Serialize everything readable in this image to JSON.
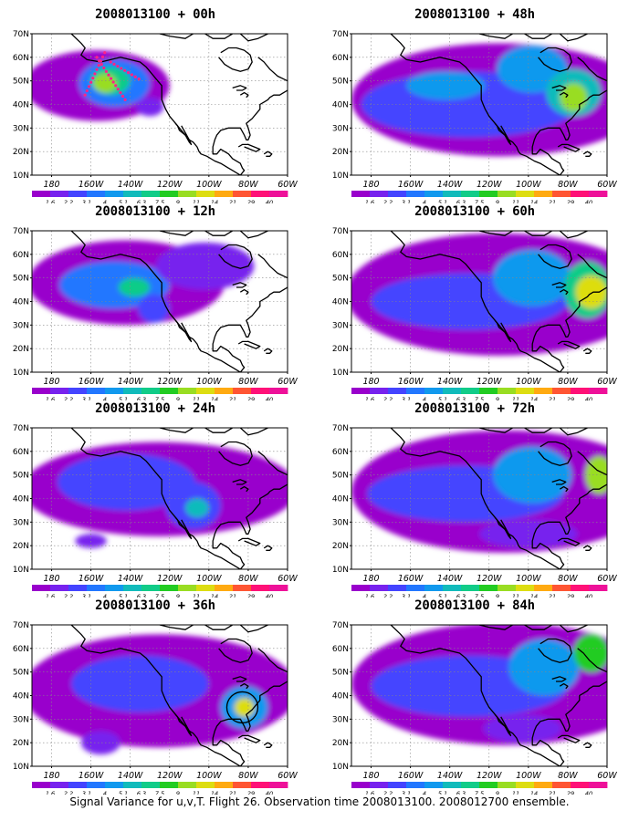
{
  "axes": {
    "lat_labels": [
      "70N",
      "60N",
      "50N",
      "40N",
      "30N",
      "20N",
      "10N"
    ],
    "lon_labels": [
      "180",
      "160W",
      "140W",
      "120W",
      "100W",
      "80W",
      "60W"
    ]
  },
  "colorbar": {
    "labels": [
      "1.6",
      "2.2",
      "3.1",
      "4",
      "5.1",
      "6.3",
      "7.5",
      "9",
      "11",
      "14",
      "21",
      "29",
      "40"
    ],
    "colors": [
      "#9900cc",
      "#7722ee",
      "#4444ff",
      "#2277ff",
      "#1199ee",
      "#11bbbb",
      "#11cc88",
      "#22cc22",
      "#99dd22",
      "#dddd11",
      "#ffaa11",
      "#ff5533",
      "#ff1177",
      "#ee1199"
    ]
  },
  "panels": [
    {
      "title": "2008013100 + 00h"
    },
    {
      "title": "2008013100 + 48h"
    },
    {
      "title": "2008013100 + 12h"
    },
    {
      "title": "2008013100 + 60h"
    },
    {
      "title": "2008013100 + 24h"
    },
    {
      "title": "2008013100 + 72h"
    },
    {
      "title": "2008013100 + 36h"
    },
    {
      "title": "2008013100 + 84h"
    }
  ],
  "footer": "Signal Variance for u,v,T. Flight 26. Observation time 2008013100. 2008012700 ensemble."
}
